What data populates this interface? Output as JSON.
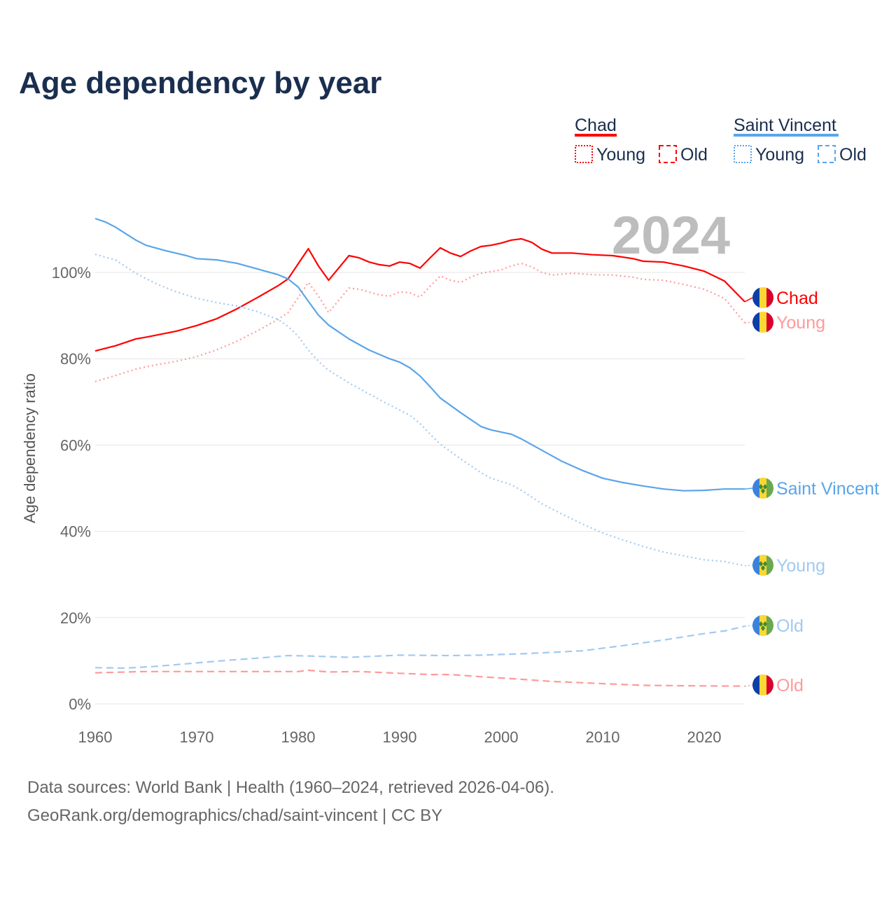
{
  "chart_data": {
    "type": "line",
    "title": "Age dependency by year",
    "ylabel": "Age dependency ratio",
    "xlabel": "",
    "xlim": [
      1960,
      2024
    ],
    "ylim": [
      0,
      115
    ],
    "x_ticks": [
      "1960",
      "1970",
      "1980",
      "1990",
      "2000",
      "2010",
      "2020"
    ],
    "y_ticks": [
      "0%",
      "20%",
      "40%",
      "60%",
      "80%",
      "100%"
    ],
    "y_tick_values": [
      0,
      20,
      40,
      60,
      80,
      100
    ],
    "grid": true,
    "year_label": "2024",
    "legend": {
      "placement": "top-right",
      "groups": [
        {
          "country": "Chad",
          "color": "#ff0000",
          "young": "Young",
          "old": "Old"
        },
        {
          "country": "Saint Vincent",
          "color": "#5aa5ea",
          "young": "Young",
          "old": "Old"
        }
      ]
    },
    "series": [
      {
        "name": "Chad",
        "label": "Chad",
        "country": "chad",
        "style": "solid",
        "color": "#ff0000",
        "points": [
          [
            1960,
            81.8
          ],
          [
            1962,
            83
          ],
          [
            1964,
            84.6
          ],
          [
            1965,
            85
          ],
          [
            1968,
            86.4
          ],
          [
            1970,
            87.7
          ],
          [
            1972,
            89.3
          ],
          [
            1974,
            91.6
          ],
          [
            1976,
            94.2
          ],
          [
            1978,
            96.9
          ],
          [
            1979,
            98.5
          ],
          [
            1981,
            105.5
          ],
          [
            1982,
            101.5
          ],
          [
            1983,
            98.2
          ],
          [
            1985,
            103.9
          ],
          [
            1986,
            103.4
          ],
          [
            1987,
            102.4
          ],
          [
            1988,
            101.8
          ],
          [
            1989,
            101.5
          ],
          [
            1990,
            102.4
          ],
          [
            1991,
            102.1
          ],
          [
            1992,
            101
          ],
          [
            1993,
            103.4
          ],
          [
            1994,
            105.7
          ],
          [
            1995,
            104.5
          ],
          [
            1996,
            103.7
          ],
          [
            1997,
            105
          ],
          [
            1998,
            106
          ],
          [
            1999,
            106.3
          ],
          [
            2000,
            106.8
          ],
          [
            2001,
            107.5
          ],
          [
            2002,
            107.8
          ],
          [
            2003,
            107
          ],
          [
            2004,
            105.4
          ],
          [
            2005,
            104.5
          ],
          [
            2007,
            104.5
          ],
          [
            2009,
            104.1
          ],
          [
            2011,
            103.9
          ],
          [
            2013,
            103.2
          ],
          [
            2014,
            102.6
          ],
          [
            2016,
            102.4
          ],
          [
            2018,
            101.5
          ],
          [
            2020,
            100.3
          ],
          [
            2022,
            98
          ],
          [
            2024,
            93.2
          ]
        ]
      },
      {
        "name": "Chad Young",
        "label": "Young",
        "country": "chad",
        "style": "dotted",
        "color": "#ff9a9a",
        "points": [
          [
            1960,
            74.7
          ],
          [
            1962,
            76.1
          ],
          [
            1964,
            77.6
          ],
          [
            1966,
            78.6
          ],
          [
            1968,
            79.4
          ],
          [
            1970,
            80.5
          ],
          [
            1972,
            82.1
          ],
          [
            1974,
            84.1
          ],
          [
            1976,
            86.5
          ],
          [
            1978,
            89.1
          ],
          [
            1979,
            90.7
          ],
          [
            1981,
            97.7
          ],
          [
            1982,
            94.5
          ],
          [
            1983,
            90.7
          ],
          [
            1985,
            96.4
          ],
          [
            1986,
            96.1
          ],
          [
            1988,
            94.8
          ],
          [
            1989,
            94.5
          ],
          [
            1990,
            95.5
          ],
          [
            1991,
            95.3
          ],
          [
            1992,
            94.3
          ],
          [
            1993,
            96.8
          ],
          [
            1994,
            99.2
          ],
          [
            1995,
            98.2
          ],
          [
            1996,
            97.7
          ],
          [
            1997,
            98.9
          ],
          [
            1998,
            99.8
          ],
          [
            2000,
            100.6
          ],
          [
            2001,
            101.5
          ],
          [
            2002,
            102.1
          ],
          [
            2003,
            101.3
          ],
          [
            2004,
            100
          ],
          [
            2005,
            99.4
          ],
          [
            2007,
            99.8
          ],
          [
            2009,
            99.5
          ],
          [
            2011,
            99.4
          ],
          [
            2013,
            98.9
          ],
          [
            2014,
            98.4
          ],
          [
            2016,
            98.2
          ],
          [
            2018,
            97.2
          ],
          [
            2020,
            96.1
          ],
          [
            2022,
            94
          ],
          [
            2024,
            88.3
          ]
        ]
      },
      {
        "name": "Chad Old",
        "label": "Old",
        "country": "chad",
        "style": "dashed",
        "color": "#ff9a9a",
        "points": [
          [
            1960,
            7.2
          ],
          [
            1965,
            7.5
          ],
          [
            1980,
            7.5
          ],
          [
            1981,
            7.8
          ],
          [
            1983,
            7.4
          ],
          [
            1986,
            7.5
          ],
          [
            1990,
            7.1
          ],
          [
            1993,
            6.8
          ],
          [
            1995,
            6.8
          ],
          [
            1998,
            6.3
          ],
          [
            2000,
            6
          ],
          [
            2002,
            5.7
          ],
          [
            2005,
            5.2
          ],
          [
            2008,
            4.9
          ],
          [
            2011,
            4.6
          ],
          [
            2014,
            4.3
          ],
          [
            2018,
            4.2
          ],
          [
            2024,
            4.1
          ]
        ]
      },
      {
        "name": "Saint Vincent",
        "label": "Saint Vincent",
        "country": "svg",
        "style": "solid",
        "color": "#5aa5ea",
        "points": [
          [
            1960,
            112.5
          ],
          [
            1961,
            111.7
          ],
          [
            1962,
            110.5
          ],
          [
            1964,
            107.5
          ],
          [
            1965,
            106.3
          ],
          [
            1967,
            105
          ],
          [
            1969,
            103.9
          ],
          [
            1970,
            103.2
          ],
          [
            1972,
            102.9
          ],
          [
            1974,
            102.1
          ],
          [
            1976,
            100.8
          ],
          [
            1978,
            99.5
          ],
          [
            1979,
            98.5
          ],
          [
            1980,
            96.6
          ],
          [
            1981,
            93.3
          ],
          [
            1982,
            90.1
          ],
          [
            1983,
            87.8
          ],
          [
            1985,
            84.6
          ],
          [
            1987,
            82
          ],
          [
            1989,
            80
          ],
          [
            1990,
            79.2
          ],
          [
            1991,
            77.9
          ],
          [
            1992,
            76
          ],
          [
            1993,
            73.5
          ],
          [
            1994,
            70.9
          ],
          [
            1996,
            67.5
          ],
          [
            1998,
            64.3
          ],
          [
            1999,
            63.5
          ],
          [
            2000,
            63
          ],
          [
            2001,
            62.5
          ],
          [
            2002,
            61.4
          ],
          [
            2004,
            58.8
          ],
          [
            2006,
            56.2
          ],
          [
            2008,
            54.1
          ],
          [
            2010,
            52.3
          ],
          [
            2012,
            51.3
          ],
          [
            2014,
            50.5
          ],
          [
            2016,
            49.8
          ],
          [
            2018,
            49.4
          ],
          [
            2020,
            49.5
          ],
          [
            2022,
            49.8
          ],
          [
            2024,
            49.8
          ]
        ]
      },
      {
        "name": "Saint Vincent Young",
        "label": "Young",
        "country": "svg",
        "style": "dotted",
        "color": "#a3c9f1",
        "points": [
          [
            1960,
            104.2
          ],
          [
            1962,
            102.9
          ],
          [
            1964,
            99.8
          ],
          [
            1966,
            97.4
          ],
          [
            1968,
            95.5
          ],
          [
            1970,
            94
          ],
          [
            1972,
            93
          ],
          [
            1974,
            92.2
          ],
          [
            1976,
            90.9
          ],
          [
            1978,
            89.1
          ],
          [
            1979,
            87.5
          ],
          [
            1980,
            85.2
          ],
          [
            1981,
            82
          ],
          [
            1982,
            79.4
          ],
          [
            1983,
            77.3
          ],
          [
            1985,
            74.4
          ],
          [
            1987,
            71.8
          ],
          [
            1989,
            69.3
          ],
          [
            1991,
            66.9
          ],
          [
            1992,
            65
          ],
          [
            1993,
            62.5
          ],
          [
            1994,
            60.2
          ],
          [
            1996,
            56.8
          ],
          [
            1998,
            53.6
          ],
          [
            1999,
            52.3
          ],
          [
            2001,
            50.8
          ],
          [
            2002,
            49.5
          ],
          [
            2004,
            46.4
          ],
          [
            2006,
            44
          ],
          [
            2008,
            41.7
          ],
          [
            2010,
            39.6
          ],
          [
            2012,
            38
          ],
          [
            2014,
            36.5
          ],
          [
            2016,
            35.2
          ],
          [
            2018,
            34.3
          ],
          [
            2020,
            33.4
          ],
          [
            2022,
            33
          ],
          [
            2024,
            32
          ]
        ]
      },
      {
        "name": "Saint Vincent Old",
        "label": "Old",
        "country": "svg",
        "style": "dashed",
        "color": "#a3c9f1",
        "points": [
          [
            1960,
            8.4
          ],
          [
            1963,
            8.3
          ],
          [
            1966,
            8.7
          ],
          [
            1970,
            9.5
          ],
          [
            1973,
            10.1
          ],
          [
            1976,
            10.6
          ],
          [
            1979,
            11.2
          ],
          [
            1981,
            11.1
          ],
          [
            1985,
            10.8
          ],
          [
            1990,
            11.3
          ],
          [
            1995,
            11.2
          ],
          [
            1998,
            11.3
          ],
          [
            2002,
            11.6
          ],
          [
            2008,
            12.3
          ],
          [
            2012,
            13.5
          ],
          [
            2016,
            14.8
          ],
          [
            2020,
            16.3
          ],
          [
            2022,
            16.9
          ],
          [
            2024,
            18
          ]
        ]
      }
    ]
  },
  "footer": {
    "line1": "Data sources: World Bank | Health (1960–2024, retrieved 2026-04-06).",
    "line2": "GeoRank.org/demographics/chad/saint-vincent | CC BY"
  }
}
